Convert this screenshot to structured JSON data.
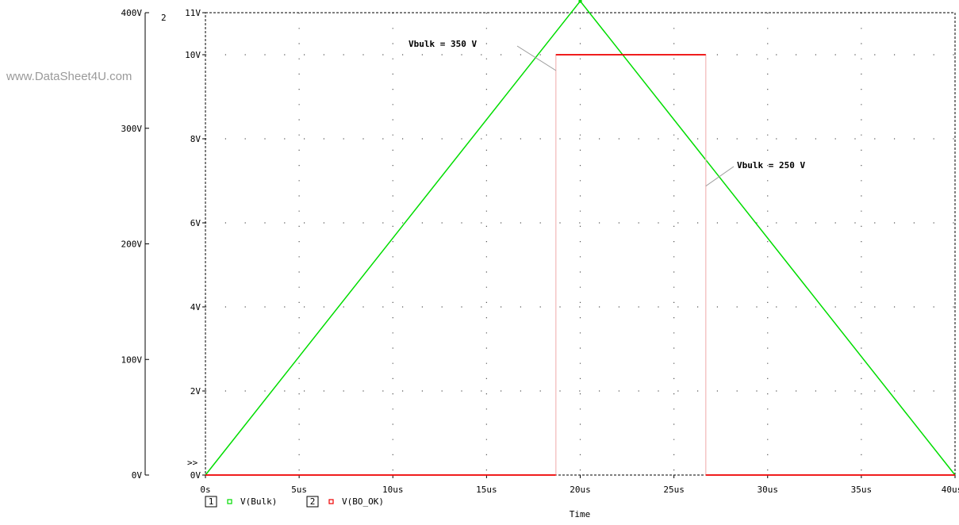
{
  "watermark": "www.DataSheet4U.com",
  "chart_data": {
    "type": "line",
    "xlabel": "Time",
    "x_ticks": [
      "0s",
      "5us",
      "10us",
      "15us",
      "20us",
      "25us",
      "30us",
      "35us",
      "40us"
    ],
    "xlim_us": [
      0,
      40
    ],
    "left_axis": {
      "id": "1",
      "ticks": [
        "0V",
        "100V",
        "200V",
        "300V",
        "400V"
      ],
      "ylim": [
        0,
        400
      ],
      "unit": "V"
    },
    "right_axis": {
      "id": "2",
      "ticks": [
        "0V",
        "2V",
        "4V",
        "6V",
        "8V",
        "10V",
        "11V"
      ],
      "tick_values": [
        0,
        2,
        4,
        6,
        8,
        10,
        11
      ],
      "ylim": [
        0,
        11
      ],
      "unit": "V"
    },
    "selected_marker": ">>",
    "grid": "dotted",
    "series": [
      {
        "name": "V(Bulk)",
        "axis": "1",
        "color": "#00dd00",
        "points": [
          [
            0,
            0
          ],
          [
            20,
            410
          ],
          [
            40,
            0
          ]
        ]
      },
      {
        "name": "V(BO_OK)",
        "axis": "2",
        "color": "#ee0000",
        "points": [
          [
            0,
            0
          ],
          [
            18.7,
            0
          ],
          [
            18.7,
            10
          ],
          [
            26.7,
            10
          ],
          [
            26.7,
            0
          ],
          [
            40,
            0
          ]
        ]
      }
    ],
    "legend": [
      {
        "index": "1",
        "label": "V(Bulk)",
        "color": "#00dd00"
      },
      {
        "index": "2",
        "label": "V(BO_OK)",
        "color": "#ee0000"
      }
    ],
    "annotations": [
      {
        "text": "Vbulk = 350 V",
        "x_us": 18.7,
        "y_left": 350
      },
      {
        "text": "Vbulk =  250 V",
        "x_us": 26.7,
        "y_left": 250
      }
    ]
  }
}
